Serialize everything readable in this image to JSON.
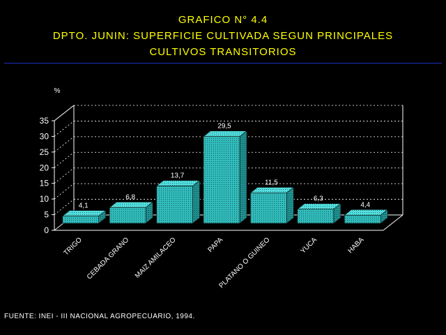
{
  "title": {
    "line1": "GRAFICO N° 4.4",
    "line2": "DPTO. JUNIN: SUPERFICIE CULTIVADA SEGUN PRINCIPALES",
    "line3": "CULTIVOS TRANSITORIOS"
  },
  "source": "FUENTE: INEI - III NACIONAL AGROPECUARIO, 1994.",
  "colors": {
    "background": "#000000",
    "title": "#ffff00",
    "bar_front": "#33bbbb",
    "bar_top": "#55dddd",
    "bar_side": "#1f8f8f",
    "axis": "#ffffff",
    "rule": "#2030c0"
  },
  "chart_data": {
    "type": "bar",
    "ylabel": "%",
    "ylim": [
      0,
      35
    ],
    "yticks": [
      0,
      5,
      10,
      15,
      20,
      25,
      30,
      35
    ],
    "grid": true,
    "three_d": true,
    "categories": [
      "TRIGO",
      "CEBADA GRANO",
      "MAIZ AMILACEO",
      "PAPA",
      "PLATANO O GUINEO",
      "YUCA",
      "HABA"
    ],
    "values": [
      4.1,
      6.8,
      13.7,
      29.5,
      11.5,
      6.3,
      4.4
    ],
    "value_labels": [
      "4,1",
      "6,8",
      "13,7",
      "29,5",
      "11,5",
      "6,3",
      "4,4"
    ]
  }
}
